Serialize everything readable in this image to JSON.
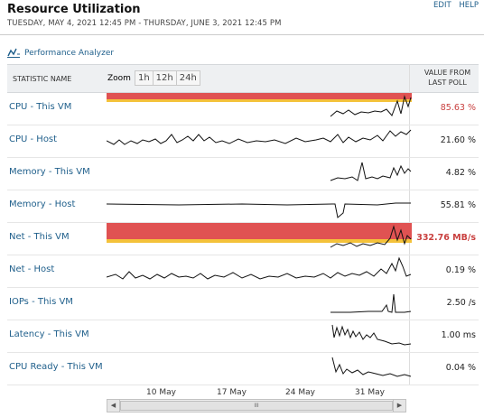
{
  "header": {
    "title": "Resource Utilization",
    "date_range": "TUESDAY, MAY 4, 2021 12:45 PM - THURSDAY, JUNE 3, 2021 12:45 PM",
    "links": [
      "EDIT",
      "HELP"
    ]
  },
  "performance_analyzer": {
    "label": "Performance Analyzer",
    "icon": "performance-analyzer-icon"
  },
  "table": {
    "col_statistic": "STATISTIC NAME",
    "zoom_label": "Zoom",
    "zoom_options": [
      "1h",
      "12h",
      "24h"
    ],
    "col_value_line1": "VALUE FROM",
    "col_value_line2": "LAST POLL"
  },
  "rows": [
    {
      "name": "CPU - This VM",
      "value": "85.63 %",
      "status": "warning"
    },
    {
      "name": "CPU - Host",
      "value": "21.60 %",
      "status": "normal"
    },
    {
      "name": "Memory - This VM",
      "value": "4.82 %",
      "status": "normal"
    },
    {
      "name": "Memory - Host",
      "value": "55.81 %",
      "status": "normal"
    },
    {
      "name": "Net - This VM",
      "value": "332.76 MB/s",
      "status": "critical"
    },
    {
      "name": "Net - Host",
      "value": "0.19 %",
      "status": "normal"
    },
    {
      "name": "IOPs - This VM",
      "value": "2.50 /s",
      "status": "normal"
    },
    {
      "name": "Latency - This VM",
      "value": "1.00 ms",
      "status": "normal"
    },
    {
      "name": "CPU Ready - This VM",
      "value": "0.04 %",
      "status": "normal"
    }
  ],
  "x_axis": {
    "ticks": [
      "10 May",
      "17 May",
      "24 May",
      "31 May"
    ]
  },
  "scrollbar": {
    "thumb_grip": "III",
    "left_arrow": "◀",
    "right_arrow": "▶"
  },
  "colors": {
    "link": "#1f5f8b",
    "critical_band": "#e05252",
    "warning_band": "#f4c23a",
    "line": "#111111"
  }
}
